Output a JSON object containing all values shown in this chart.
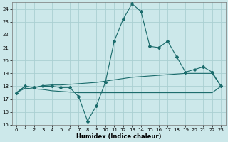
{
  "title": "",
  "xlabel": "Humidex (Indice chaleur)",
  "background_color": "#cce8ea",
  "grid_color": "#aacfd2",
  "line_color": "#1a6b6b",
  "xlim": [
    -0.5,
    23.5
  ],
  "ylim": [
    15,
    24.5
  ],
  "yticks": [
    15,
    16,
    17,
    18,
    19,
    20,
    21,
    22,
    23,
    24
  ],
  "xticks": [
    0,
    1,
    2,
    3,
    4,
    5,
    6,
    7,
    8,
    9,
    10,
    11,
    12,
    13,
    14,
    15,
    16,
    17,
    18,
    19,
    20,
    21,
    22,
    23
  ],
  "curve1_x": [
    0,
    1,
    2,
    3,
    4,
    5,
    6,
    7,
    8,
    9,
    10,
    11,
    12,
    13,
    14,
    15,
    16,
    17,
    18,
    19,
    20,
    21,
    22,
    23
  ],
  "curve1_y": [
    17.5,
    18.0,
    17.9,
    18.0,
    18.0,
    17.9,
    17.9,
    17.2,
    15.3,
    16.5,
    18.3,
    21.5,
    23.2,
    24.4,
    23.8,
    21.1,
    21.0,
    21.5,
    20.3,
    19.1,
    19.3,
    19.5,
    19.1,
    18.0
  ],
  "curve2_x": [
    0,
    1,
    2,
    3,
    4,
    5,
    6,
    7,
    8,
    9,
    10,
    11,
    12,
    13,
    14,
    15,
    16,
    17,
    18,
    19,
    20,
    21,
    22,
    23
  ],
  "curve2_y": [
    17.5,
    18.0,
    17.9,
    18.05,
    18.1,
    18.1,
    18.15,
    18.2,
    18.25,
    18.3,
    18.4,
    18.5,
    18.6,
    18.7,
    18.75,
    18.8,
    18.85,
    18.9,
    18.95,
    19.0,
    19.0,
    19.0,
    19.0,
    18.0
  ],
  "curve3_x": [
    0,
    1,
    2,
    3,
    4,
    5,
    6,
    7,
    8,
    9,
    10,
    11,
    12,
    13,
    14,
    15,
    16,
    17,
    18,
    19,
    20,
    21,
    22,
    23
  ],
  "curve3_y": [
    17.5,
    17.85,
    17.8,
    17.75,
    17.65,
    17.6,
    17.55,
    17.5,
    17.5,
    17.5,
    17.5,
    17.5,
    17.5,
    17.5,
    17.5,
    17.5,
    17.5,
    17.5,
    17.5,
    17.5,
    17.5,
    17.5,
    17.5,
    18.0
  ]
}
